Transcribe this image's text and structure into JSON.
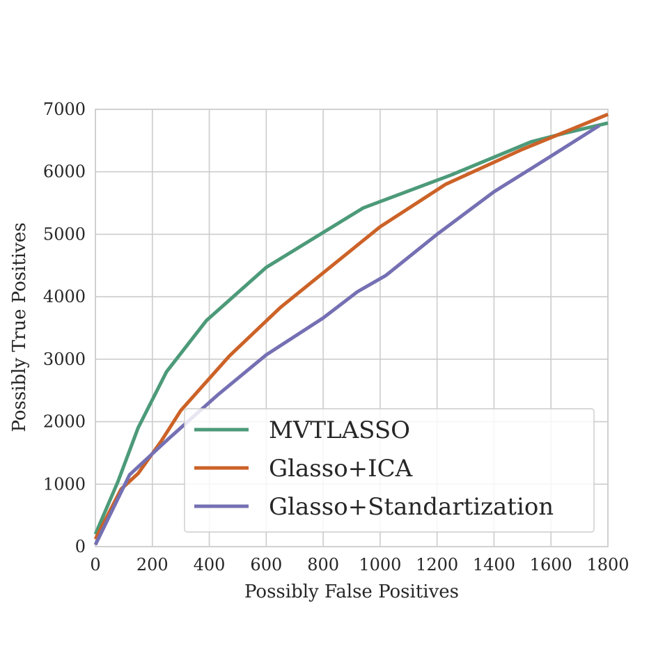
{
  "chart_data": {
    "type": "line",
    "title": "",
    "xlabel": "Possibly False Positives",
    "ylabel": "Possibly True Positives",
    "xlim": [
      0,
      1800
    ],
    "ylim": [
      0,
      7000
    ],
    "xticks": [
      0,
      200,
      400,
      600,
      800,
      1000,
      1200,
      1400,
      1600,
      1800
    ],
    "yticks": [
      0,
      1000,
      2000,
      3000,
      4000,
      5000,
      6000,
      7000
    ],
    "xtick_labels": [
      "0",
      "200",
      "400",
      "600",
      "800",
      "1000",
      "1200",
      "1400",
      "1600",
      "1800"
    ],
    "ytick_labels": [
      "0",
      "1000",
      "2000",
      "3000",
      "4000",
      "5000",
      "6000",
      "7000"
    ],
    "grid": true,
    "legend_position": "lower-right",
    "series": [
      {
        "name": "MVTLASSO",
        "color": "#4c9a79",
        "x": [
          0,
          80,
          150,
          250,
          390,
          600,
          940,
          1250,
          1530,
          1650,
          1800
        ],
        "y": [
          200,
          1050,
          1900,
          2800,
          3620,
          4470,
          5420,
          5950,
          6480,
          6620,
          6780
        ]
      },
      {
        "name": "Glasso+ICA",
        "color": "#cc6227",
        "x": [
          0,
          90,
          150,
          230,
          300,
          470,
          650,
          1000,
          1230,
          1500,
          1800
        ],
        "y": [
          120,
          920,
          1170,
          1680,
          2180,
          3050,
          3830,
          5120,
          5800,
          6360,
          6920
        ]
      },
      {
        "name": "Glasso+Standartization",
        "color": "#7570b3",
        "x": [
          0,
          120,
          260,
          430,
          600,
          800,
          920,
          1020,
          1200,
          1400,
          1600,
          1770
        ],
        "y": [
          30,
          1150,
          1740,
          2430,
          3070,
          3660,
          4080,
          4340,
          5000,
          5680,
          6250,
          6740
        ]
      }
    ]
  }
}
